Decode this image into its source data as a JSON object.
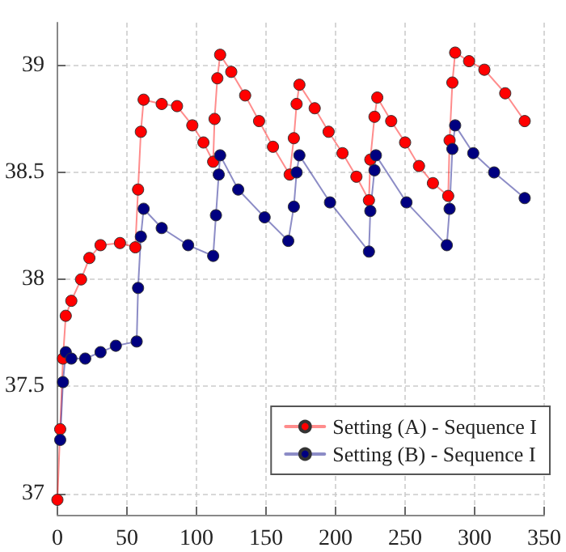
{
  "chart_data": {
    "type": "line",
    "xlim": [
      0,
      350
    ],
    "ylim": [
      36.9,
      39.2
    ],
    "xticks": [
      0,
      50,
      100,
      150,
      200,
      250,
      300,
      350
    ],
    "yticks": [
      37,
      37.5,
      38,
      38.5,
      39
    ],
    "grid": true,
    "legend": "bottom right",
    "marker": "circle",
    "line_style": "solid",
    "series": [
      {
        "name": "Setting (A) - Sequence I",
        "color": "#ff0000",
        "x": [
          0,
          2,
          4,
          6,
          10,
          17,
          23,
          31,
          45,
          56,
          58,
          60,
          62,
          75,
          86,
          97,
          105,
          112,
          113,
          115,
          117,
          125,
          135,
          145,
          155,
          167,
          170,
          172,
          174,
          185,
          195,
          205,
          215,
          224,
          225,
          228,
          230,
          240,
          250,
          260,
          270,
          281,
          282,
          284,
          286,
          296,
          307,
          322,
          336
        ],
        "values": [
          36.97,
          37.3,
          37.63,
          37.83,
          37.9,
          38.0,
          38.1,
          38.16,
          38.17,
          38.15,
          38.42,
          38.69,
          38.84,
          38.82,
          38.81,
          38.72,
          38.64,
          38.55,
          38.75,
          38.94,
          39.05,
          38.97,
          38.86,
          38.74,
          38.62,
          38.49,
          38.66,
          38.82,
          38.91,
          38.8,
          38.69,
          38.59,
          38.48,
          38.37,
          38.56,
          38.76,
          38.85,
          38.74,
          38.64,
          38.53,
          38.45,
          38.39,
          38.65,
          38.92,
          39.06,
          39.02,
          38.98,
          38.87,
          38.74
        ]
      },
      {
        "name": "Setting (B) - Sequence I",
        "color": "#000080",
        "x": [
          2,
          4,
          6,
          10,
          20,
          31,
          42,
          57,
          58,
          60,
          62,
          75,
          94,
          112,
          114,
          116,
          117,
          130,
          149,
          166,
          170,
          172,
          174,
          196,
          224,
          225,
          228,
          229,
          251,
          280,
          282,
          284,
          286,
          299,
          314,
          336
        ],
        "values": [
          37.25,
          37.52,
          37.66,
          37.63,
          37.63,
          37.66,
          37.69,
          37.71,
          37.96,
          38.2,
          38.33,
          38.24,
          38.16,
          38.11,
          38.3,
          38.49,
          38.58,
          38.42,
          38.29,
          38.18,
          38.34,
          38.5,
          38.58,
          38.36,
          38.13,
          38.32,
          38.51,
          38.58,
          38.36,
          38.16,
          38.33,
          38.61,
          38.72,
          38.59,
          38.5,
          38.38
        ]
      }
    ]
  }
}
